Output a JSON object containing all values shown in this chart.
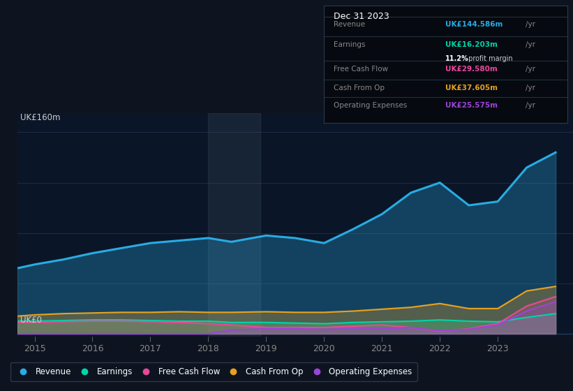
{
  "bg_color": "#0d1420",
  "plot_bg_color": "#0a1628",
  "ylabel_top": "UK£160m",
  "ylabel_bottom": "UK£0",
  "years": [
    2014.7,
    2015,
    2015.5,
    2016,
    2016.5,
    2017,
    2017.5,
    2018,
    2018.4,
    2019,
    2019.5,
    2020,
    2020.5,
    2021,
    2021.5,
    2022,
    2022.5,
    2023,
    2023.5,
    2024.0
  ],
  "revenue": [
    52,
    55,
    59,
    64,
    68,
    72,
    74,
    76,
    73,
    78,
    76,
    72,
    83,
    95,
    112,
    120,
    102,
    105,
    132,
    144
  ],
  "earnings": [
    10,
    10,
    10.5,
    11,
    11,
    10.5,
    10,
    10,
    9,
    9,
    8.5,
    8,
    9,
    9.5,
    10,
    11,
    10,
    9.5,
    13,
    16
  ],
  "free_cash_flow": [
    9,
    9,
    9.5,
    10,
    10,
    9.5,
    9,
    8,
    7,
    5,
    5,
    5,
    6,
    7,
    5,
    2,
    4,
    8,
    22,
    29.5
  ],
  "cash_from_op": [
    14,
    15,
    16,
    16.5,
    17,
    17,
    17.5,
    17,
    17,
    17.5,
    17,
    17,
    18,
    19.5,
    21,
    24,
    20,
    20,
    34,
    37.6
  ],
  "operating_expenses": [
    0,
    0,
    0,
    0,
    0,
    0,
    0,
    0,
    3,
    4,
    4,
    3.5,
    4,
    4,
    5,
    2.5,
    3.5,
    7,
    18,
    25.5
  ],
  "revenue_color": "#29abe2",
  "earnings_color": "#00d4aa",
  "fcf_color": "#e8489a",
  "cashop_color": "#e8a020",
  "opex_color": "#9b44d8",
  "shade_x_start": 2018.0,
  "shade_x_end": 2018.9,
  "info_box": {
    "date": "Dec 31 2023",
    "rows": [
      {
        "label": "Revenue",
        "value": "UK£144.586m",
        "color": "#29abe2",
        "sub": null
      },
      {
        "label": "Earnings",
        "value": "UK£16.203m",
        "color": "#00d4aa",
        "sub": "11.2% profit margin"
      },
      {
        "label": "Free Cash Flow",
        "value": "UK£29.580m",
        "color": "#e8489a",
        "sub": null
      },
      {
        "label": "Cash From Op",
        "value": "UK£37.605m",
        "color": "#e8a020",
        "sub": null
      },
      {
        "label": "Operating Expenses",
        "value": "UK£25.575m",
        "color": "#9b44d8",
        "sub": null
      }
    ]
  },
  "legend_items": [
    {
      "label": "Revenue",
      "color": "#29abe2"
    },
    {
      "label": "Earnings",
      "color": "#00d4aa"
    },
    {
      "label": "Free Cash Flow",
      "color": "#e8489a"
    },
    {
      "label": "Cash From Op",
      "color": "#e8a020"
    },
    {
      "label": "Operating Expenses",
      "color": "#9b44d8"
    }
  ],
  "xlim": [
    2014.7,
    2024.3
  ],
  "ylim": [
    -2,
    175
  ],
  "xticks": [
    2015,
    2016,
    2017,
    2018,
    2019,
    2020,
    2021,
    2022,
    2023
  ]
}
